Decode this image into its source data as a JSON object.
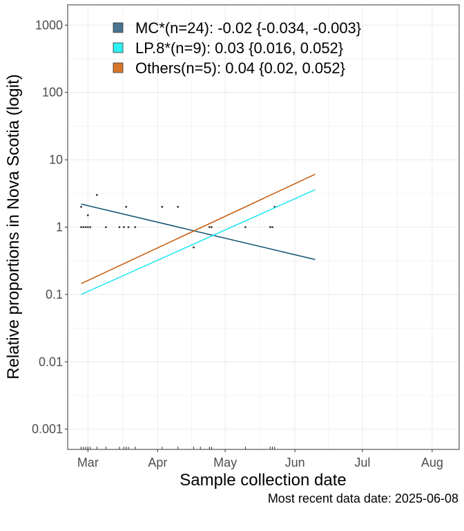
{
  "chart_data": {
    "type": "line",
    "xlabel": "Sample collection date",
    "ylabel": "Relative proportions in Nova Scotia (logit)",
    "caption": "Most recent data date: 2025-06-08",
    "y_scale": "log",
    "grid": true,
    "legend_position": "top-left",
    "xlim": [
      "2025-02-20",
      "2025-08-13"
    ],
    "ylim": [
      0.0005,
      2000
    ],
    "x_ticks": [
      {
        "label": "Mar",
        "date": "2025-03-01"
      },
      {
        "label": "Apr",
        "date": "2025-04-01"
      },
      {
        "label": "May",
        "date": "2025-05-01"
      },
      {
        "label": "Jun",
        "date": "2025-06-01"
      },
      {
        "label": "Jul",
        "date": "2025-07-01"
      },
      {
        "label": "Aug",
        "date": "2025-08-01"
      }
    ],
    "y_ticks": [
      {
        "label": "0.001",
        "value": 0.001
      },
      {
        "label": "0.01",
        "value": 0.01
      },
      {
        "label": "0.1",
        "value": 0.1
      },
      {
        "label": "1",
        "value": 1
      },
      {
        "label": "10",
        "value": 10
      },
      {
        "label": "100",
        "value": 100
      },
      {
        "label": "1000",
        "value": 1000
      }
    ],
    "series": [
      {
        "name": "MC*(n=24): -0.02 {-0.034, -0.003}",
        "color": "#0b4f6c",
        "legend_fill": "#4a7391",
        "x": [
          "2025-02-26",
          "2025-06-10"
        ],
        "y": [
          2.2,
          0.33
        ]
      },
      {
        "name": "LP.8*(n=9): 0.03 {0.016, 0.052}",
        "color": "#1ee6f0",
        "legend_fill": "#2ef0f0",
        "x": [
          "2025-02-26",
          "2025-06-10"
        ],
        "y": [
          0.1,
          3.6
        ]
      },
      {
        "name": "Others(n=5): 0.04 {0.02, 0.052}",
        "color": "#c85a0a",
        "legend_fill": "#d9772a",
        "x": [
          "2025-02-26",
          "2025-06-10"
        ],
        "y": [
          0.145,
          6.1
        ]
      }
    ],
    "points": [
      {
        "x": "2025-02-26",
        "y": 2
      },
      {
        "x": "2025-02-26",
        "y": 1
      },
      {
        "x": "2025-02-27",
        "y": 1
      },
      {
        "x": "2025-02-28",
        "y": 1
      },
      {
        "x": "2025-02-29",
        "y": 1.5
      },
      {
        "x": "2025-03-01",
        "y": 1
      },
      {
        "x": "2025-03-02",
        "y": 1
      },
      {
        "x": "2025-03-05",
        "y": 3
      },
      {
        "x": "2025-03-09",
        "y": 1
      },
      {
        "x": "2025-03-15",
        "y": 1
      },
      {
        "x": "2025-03-17",
        "y": 1
      },
      {
        "x": "2025-03-18",
        "y": 2
      },
      {
        "x": "2025-03-19",
        "y": 1
      },
      {
        "x": "2025-03-22",
        "y": 1
      },
      {
        "x": "2025-04-03",
        "y": 2
      },
      {
        "x": "2025-04-10",
        "y": 2
      },
      {
        "x": "2025-04-17",
        "y": 0.5
      },
      {
        "x": "2025-04-24",
        "y": 1
      },
      {
        "x": "2025-04-25",
        "y": 1
      },
      {
        "x": "2025-05-10",
        "y": 1
      },
      {
        "x": "2025-05-21",
        "y": 1
      },
      {
        "x": "2025-05-22",
        "y": 1
      },
      {
        "x": "2025-05-23",
        "y": 2
      }
    ],
    "rug_dates": [
      "2025-02-26",
      "2025-02-27",
      "2025-02-28",
      "2025-02-29",
      "2025-03-01",
      "2025-03-02",
      "2025-03-05",
      "2025-03-09",
      "2025-03-15",
      "2025-03-17",
      "2025-03-18",
      "2025-03-19",
      "2025-03-22",
      "2025-04-03",
      "2025-04-10",
      "2025-04-17",
      "2025-04-20",
      "2025-04-24",
      "2025-04-25",
      "2025-05-10",
      "2025-05-21",
      "2025-05-22",
      "2025-05-23"
    ]
  }
}
